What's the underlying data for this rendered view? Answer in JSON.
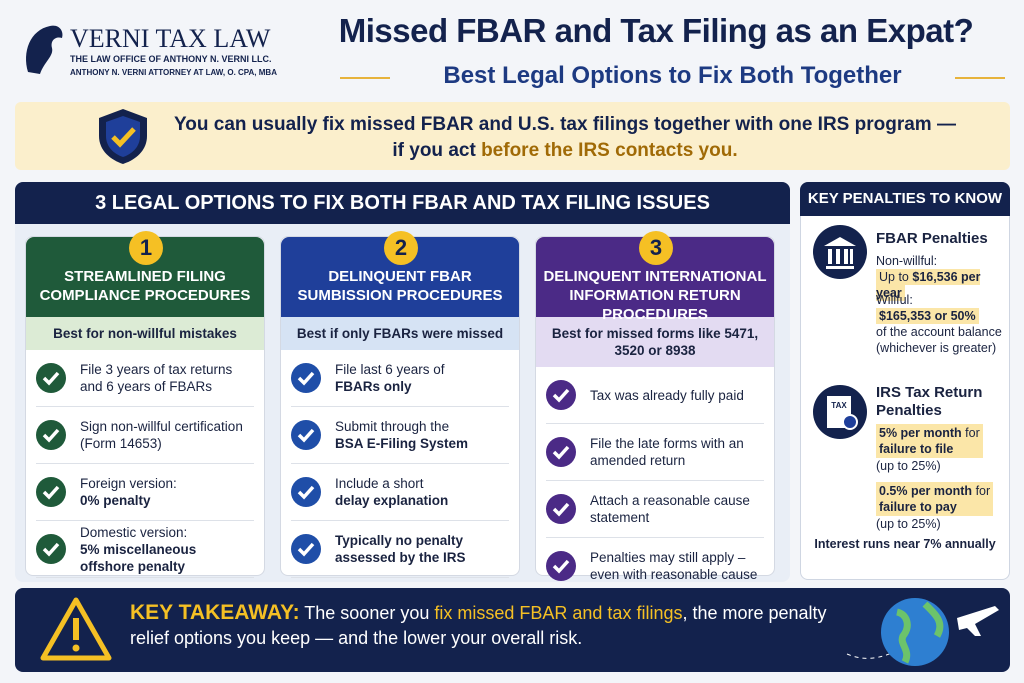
{
  "header": {
    "logo_name": "VERNI TAX LAW",
    "logo_line1": "THE LAW OFFICE OF ANTHONY N. VERNI LLC.",
    "logo_line2": "ANTHONY N. VERNI ATTORNEY AT LAW, O. CPA, MBA",
    "title": "Missed FBAR and Tax Filing as an Expat?",
    "subtitle": "Best Legal Options to Fix Both Together"
  },
  "banner": {
    "line1": "You can usually fix missed FBAR and U.S. tax filings together with one IRS program —",
    "line2": "if you act",
    "highlight": "before the IRS contacts you."
  },
  "options": {
    "heading": "3 LEGAL OPTIONS TO FIX BOTH FBAR AND TAX FILING ISSUES",
    "cards": [
      {
        "number": "1",
        "title": "STREAMLINED FILING COMPLIANCE PROCEDURES",
        "best": "Best for non-willful mistakes",
        "items": [
          {
            "text": "File 3 years of tax returns and 6 years of FBARs"
          },
          {
            "text": "Sign non-willful certification (Form 14653)"
          },
          {
            "text": "Foreign version:",
            "bold": "0% penalty"
          },
          {
            "text": "Domestic version:",
            "bold": "5% miscellaneous offshore penalty"
          }
        ]
      },
      {
        "number": "2",
        "title": "DELINQUENT FBAR SUMBISSION PROCEDURES",
        "best": "Best if only FBARs were missed",
        "items": [
          {
            "text": "File last 6 years of",
            "bold": "FBARs only"
          },
          {
            "text": "Submit through the",
            "bold": "BSA E-Filing System"
          },
          {
            "text": "Include a short",
            "bold": "delay explanation"
          },
          {
            "bold": "Typically no penalty assessed by the IRS"
          }
        ]
      },
      {
        "number": "3",
        "title": "DELINQUENT INTERNATIONAL INFORMATION RETURN PROCEDURES",
        "best": "Best for missed forms like 5471, 3520 or 8938",
        "items": [
          {
            "text": "Tax was already fully paid"
          },
          {
            "text": "File the late forms with an amended return"
          },
          {
            "text": "Attach a reasonable cause statement"
          },
          {
            "text": "Penalties may still apply – even with reasonable cause"
          }
        ]
      }
    ]
  },
  "penalties": {
    "heading": "KEY PENALTIES TO KNOW",
    "fbar": {
      "title": "FBAR Penalties",
      "nonwillful_label": "Non-willful:",
      "nonwillful_prefix": "Up to",
      "nonwillful_value": "$16,536 per year",
      "willful_label": "Willful:",
      "willful_value": "$165,353 or 50%",
      "willful_note": "of the account balance (whichever is greater)"
    },
    "irs": {
      "icon": "TAX",
      "title": "IRS Tax Return Penalties",
      "items": [
        {
          "rate": "5% per month",
          "for": "for",
          "what": "failure to file",
          "cap": "(up to 25%)"
        },
        {
          "rate": "0.5% per month",
          "for": "for",
          "what": "failure to pay",
          "cap": "(up to 25%)"
        }
      ],
      "note": "Interest runs near 7% annually"
    }
  },
  "takeaway": {
    "label": "KEY TAKEAWAY:",
    "text1": "The sooner you",
    "highlight": "fix missed FBAR and tax filings",
    "text2": ", the more penalty relief options you keep — and the lower your overall risk."
  }
}
